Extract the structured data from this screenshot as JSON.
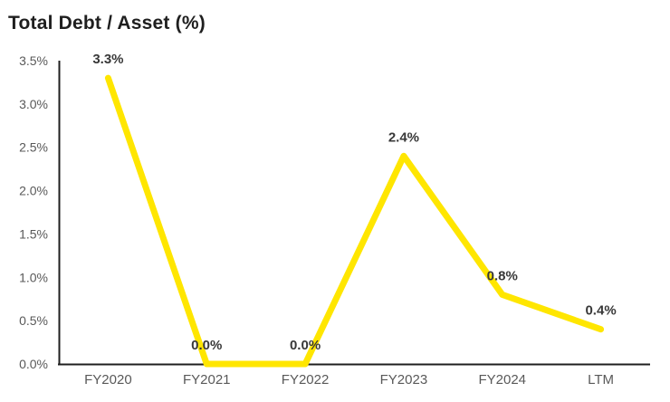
{
  "chart_data": {
    "type": "line",
    "title": "Total Debt / Asset (%)",
    "categories": [
      "FY2020",
      "FY2021",
      "FY2022",
      "FY2023",
      "FY2024",
      "LTM"
    ],
    "series": [
      {
        "name": "Total Debt / Asset (%)",
        "values": [
          3.3,
          0.0,
          0.0,
          2.4,
          0.8,
          0.4
        ]
      }
    ],
    "data_labels": [
      "3.3%",
      "0.0%",
      "0.0%",
      "2.4%",
      "0.8%",
      "0.4%"
    ],
    "xlabel": "",
    "ylabel": "",
    "ylim": [
      0,
      3.5
    ],
    "ytick_step": 0.5,
    "ytick_labels": [
      "0.0%",
      "0.5%",
      "1.0%",
      "1.5%",
      "2.0%",
      "2.5%",
      "3.0%",
      "3.5%"
    ],
    "grid": false,
    "legend_position": "none",
    "colors": {
      "line": "#FFE600",
      "axis": "#1f1f1f",
      "tick_label": "#595959",
      "data_label": "#383838",
      "title": "#1f1f1f",
      "background": "#ffffff"
    }
  }
}
